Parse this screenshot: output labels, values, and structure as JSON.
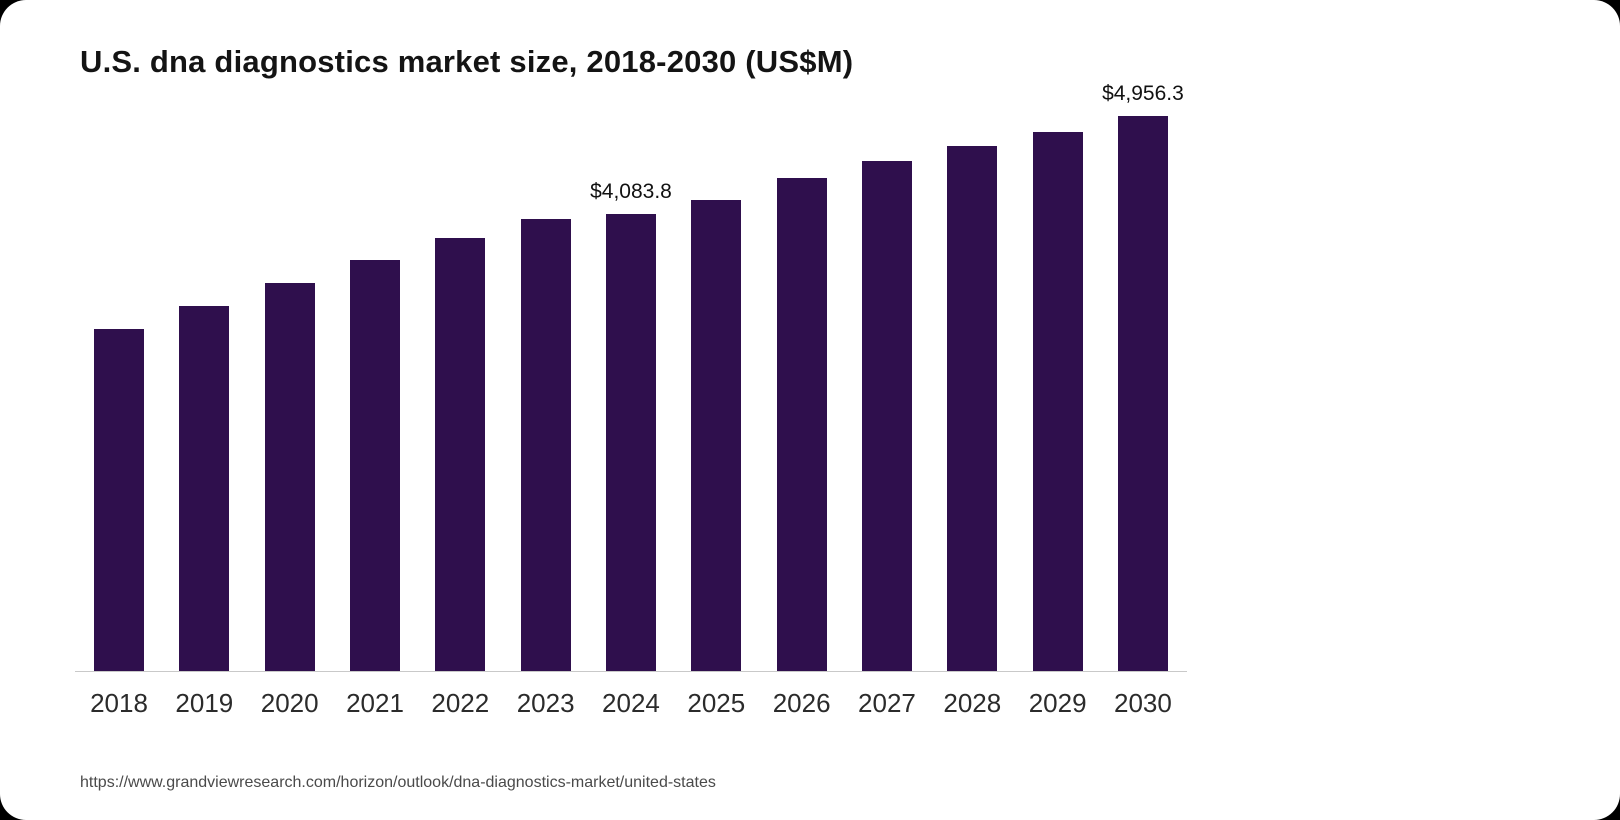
{
  "chart_data": {
    "type": "bar",
    "title": "U.S. dna diagnostics market size, 2018-2030 (US$M)",
    "xlabel": "",
    "ylabel": "",
    "ylim": [
      0,
      5000
    ],
    "grid": false,
    "legend": false,
    "bar_color": "#2f0f4d",
    "categories": [
      "2018",
      "2019",
      "2020",
      "2021",
      "2022",
      "2023",
      "2024",
      "2025",
      "2026",
      "2027",
      "2028",
      "2029",
      "2030"
    ],
    "values": [
      3054,
      3261,
      3460,
      3667,
      3865,
      4036,
      4083.8,
      4208,
      4406,
      4550,
      4685,
      4812,
      4956.3
    ],
    "data_labels": [
      "",
      "",
      "",
      "",
      "",
      "",
      "$4,083.8",
      "",
      "",
      "",
      "",
      "",
      "$4,956.3"
    ]
  },
  "source_url": "https://www.grandviewresearch.com/horizon/outlook/dna-diagnostics-market/united-states"
}
